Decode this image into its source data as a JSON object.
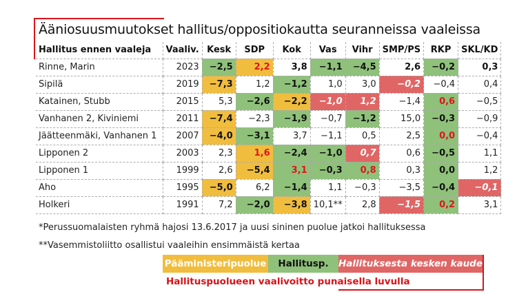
{
  "title": "Ääniosuusmuutokset hallitus/oppositiokautta seuranneissa vaaleissa",
  "colors": {
    "pm_party": "#f1bd3e",
    "government_party": "#8fc17b",
    "left_mid_term": "#e06666",
    "gain_text": "#e0141a"
  },
  "chart_data": {
    "type": "table",
    "columns": [
      "Hallitus ennen vaaleja",
      "Vaaliv.",
      "Kesk",
      "SDP",
      "Kok",
      "Vas",
      "Vihr",
      "SMP/PS",
      "RKP",
      "SKL/KD"
    ],
    "rows": [
      {
        "name": "Rinne, Marin",
        "year": "2023",
        "values": [
          "−2,5",
          "2,2",
          "3,8",
          "−1,1",
          "−4,5",
          "2,6",
          "−0,2",
          "0,3"
        ],
        "styles": [
          "G",
          "Y rt",
          "b",
          "G",
          "G",
          "b",
          "G",
          "b"
        ]
      },
      {
        "name": "Sipilä",
        "year": "2019",
        "values": [
          "−7,3",
          "1,2",
          "−1,2",
          "1,0",
          "3,0",
          "−0,2",
          "−0,4",
          "0,4"
        ],
        "styles": [
          "Y",
          "",
          "G",
          "",
          "",
          "R",
          "",
          ""
        ]
      },
      {
        "name": "Katainen, Stubb",
        "year": "2015",
        "values": [
          "5,3",
          "−2,6",
          "−2,2",
          "−1,0",
          "1,2",
          "−1,4",
          "0,6",
          "−0,5"
        ],
        "styles": [
          "",
          "G",
          "Y",
          "R",
          "R",
          "",
          "G rt",
          ""
        ]
      },
      {
        "name": "Vanhanen 2, Kiviniemi",
        "year": "2011",
        "values": [
          "−7,4",
          "−2,3",
          "−1,9",
          "−0,7",
          "−1,2",
          "15,0",
          "−0,3",
          "−0,9"
        ],
        "styles": [
          "Y",
          "",
          "G",
          "",
          "G",
          "",
          "G",
          ""
        ]
      },
      {
        "name": "Jäätteenmäki, Vanhanen 1",
        "year": "2007",
        "values": [
          "−4,0",
          "−3,1",
          "3,7",
          "−1,1",
          "0,5",
          "2,5",
          "0,0",
          "−0,4"
        ],
        "styles": [
          "Y",
          "G",
          "",
          "",
          "",
          "",
          "G rt",
          ""
        ]
      },
      {
        "name": "Lipponen 2",
        "year": "2003",
        "values": [
          "2,3",
          "1,6",
          "−2,4",
          "−1,0",
          "0,7",
          "0,6",
          "−0,5",
          "1,1"
        ],
        "styles": [
          "",
          "Y rt",
          "G",
          "G",
          "R",
          "",
          "G",
          ""
        ]
      },
      {
        "name": "Lipponen 1",
        "year": "1999",
        "values": [
          "2,6",
          "−5,4",
          "3,1",
          "−0,3",
          "0,8",
          "0,3",
          "0,0",
          "1,2"
        ],
        "styles": [
          "",
          "Y",
          "G rt",
          "G",
          "G rt",
          "",
          "G",
          ""
        ]
      },
      {
        "name": "Aho",
        "year": "1995",
        "values": [
          "−5,0",
          "6,2",
          "−1,4",
          "1,1",
          "−0,3",
          "−3,5",
          "−0,4",
          "−0,1"
        ],
        "styles": [
          "Y",
          "",
          "G",
          "",
          "",
          "",
          "G",
          "R"
        ]
      },
      {
        "name": "Holkeri",
        "year": "1991",
        "values": [
          "7,2",
          "−2,0",
          "−3,8",
          "10,1**",
          "2,8",
          "−1,5",
          "0,2",
          "3,1"
        ],
        "styles": [
          "",
          "G",
          "Y",
          "",
          "",
          "R",
          "G rt",
          ""
        ]
      }
    ]
  },
  "notes": [
    "*Perussuomalaisten ryhmä hajosi 13.6.2017 ja uusi sininen puolue jatkoi hallituksessa",
    "**Vasemmistoliitto osallistui vaaleihin ensimmäistä kertaa"
  ],
  "legend": {
    "pm_party": "Pääministeripuolue",
    "government_party": "Hallitusp.",
    "left_mid_term": "Hallituksesta kesken kauden",
    "gain_note": "Hallituspuolueen vaalivoitto  punaisella luvulla"
  }
}
